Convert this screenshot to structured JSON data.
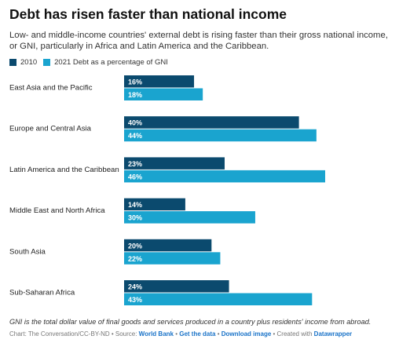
{
  "header": {
    "title": "Debt has risen faster than national income",
    "subtitle": "Low- and middle-income countries' external debt is rising faster than their gross national income, or GNI, particularly in Africa and Latin America and the Caribbean."
  },
  "legend": {
    "items": [
      {
        "label": "2010",
        "color": "#0b4a6e"
      },
      {
        "label": "2021 Debt as a percentage of GNI",
        "color": "#1aa4cf"
      }
    ]
  },
  "chart_data": {
    "type": "bar",
    "orientation": "horizontal",
    "categories": [
      "East Asia and the Pacific",
      "Europe and Central Asia",
      "Latin America and the Caribbean",
      "Middle East and North Africa",
      "South Asia",
      "Sub-Saharan Africa"
    ],
    "series": [
      {
        "name": "2010",
        "color": "#0b4a6e",
        "values": [
          16,
          40,
          23,
          14,
          20,
          24
        ],
        "labels": [
          "16%",
          "40%",
          "23%",
          "14%",
          "20%",
          "24%"
        ]
      },
      {
        "name": "2021 Debt as a percentage of GNI",
        "color": "#1aa4cf",
        "values": [
          18,
          44,
          46,
          30,
          22,
          43
        ],
        "labels": [
          "18%",
          "44%",
          "46%",
          "30%",
          "22%",
          "43%"
        ]
      }
    ],
    "xlim": [
      0,
      46
    ],
    "grid": false
  },
  "note": "GNI is the total dollar value of final goods and services produced in a country plus residents' income from abroad.",
  "footer": {
    "chart_label": "Chart: ",
    "credit": "The Conversation/CC-BY-ND",
    "source_label": " • Source: ",
    "source_link": "World Bank",
    "sep1": " • ",
    "get_data": "Get the data",
    "sep2": " • ",
    "download": "Download image",
    "sep3": " • Created with ",
    "tool": "Datawrapper"
  }
}
